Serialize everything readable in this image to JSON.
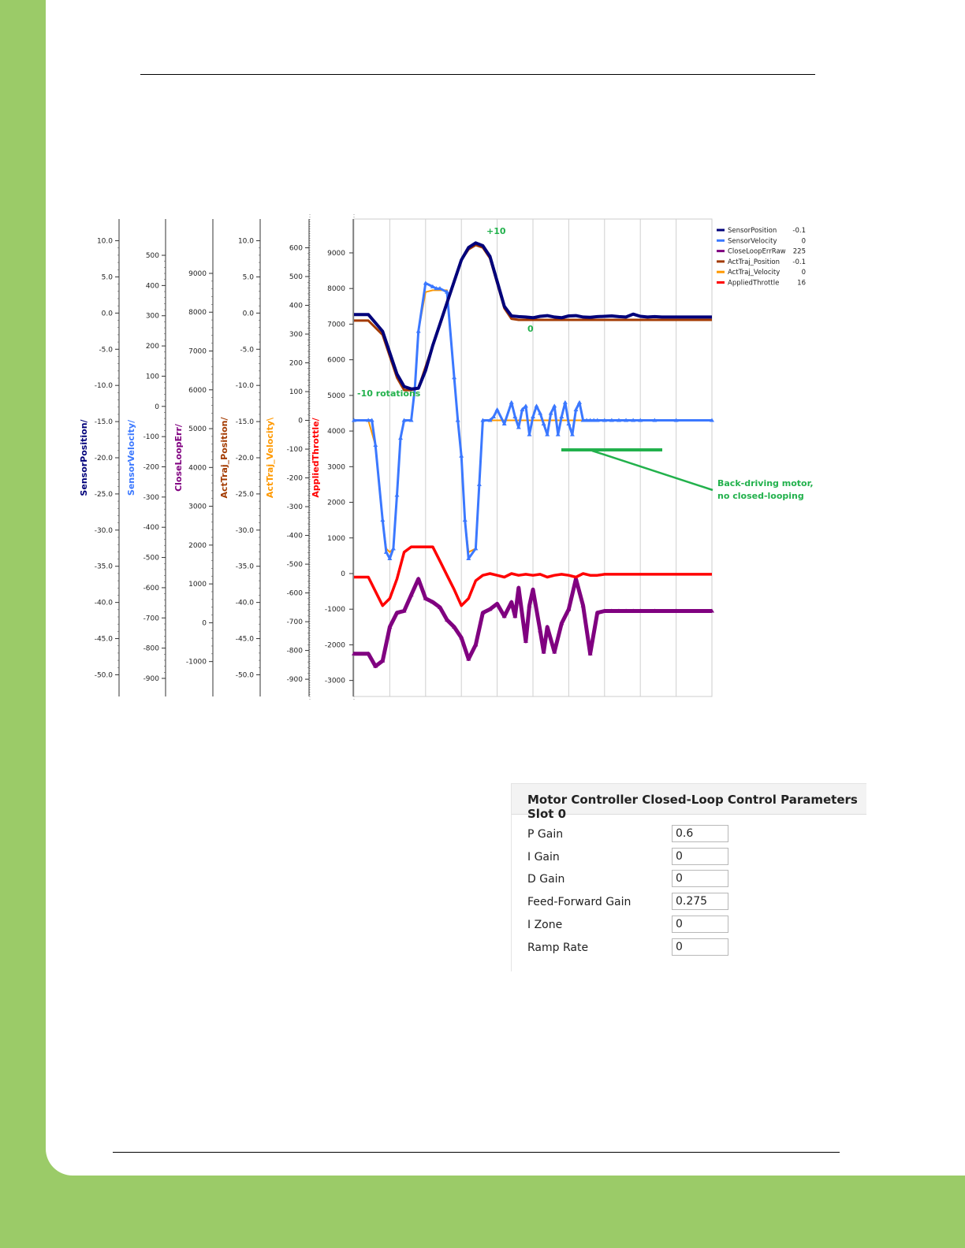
{
  "chart_data": {
    "type": "line",
    "axes": [
      {
        "name": "SensorPosition/",
        "color": "#00007a",
        "ticks": [
          10,
          5,
          0,
          -5,
          -10,
          -15,
          -20,
          -25,
          -30,
          -35,
          -40,
          -45,
          -50
        ],
        "tick_labels": [
          "10.0",
          "5.0",
          "0.0",
          "-5.0",
          "-10.0",
          "-15.0",
          "-20.0",
          "-25.0",
          "-30.0",
          "-35.0",
          "-40.0",
          "-45.0",
          "-50.0"
        ],
        "ylim": [
          -53,
          13
        ]
      },
      {
        "name": "SensorVelocity/",
        "color": "#3b78ff",
        "ticks": [
          500,
          400,
          300,
          200,
          100,
          0,
          -100,
          -200,
          -300,
          -400,
          -500,
          -600,
          -700,
          -800,
          -900
        ],
        "tick_labels": [
          "500",
          "400",
          "300",
          "200",
          "100",
          "0",
          "-100",
          "-200",
          "-300",
          "-400",
          "-500",
          "-600",
          "-700",
          "-800",
          "-900"
        ],
        "ylim": [
          -960,
          620
        ]
      },
      {
        "name": "CloseLoopErr/",
        "color": "#800080",
        "ticks": [
          9000,
          8000,
          7000,
          6000,
          5000,
          4000,
          3000,
          2000,
          1000,
          0,
          -1000
        ],
        "tick_labels": [
          "9000",
          "8000",
          "7000",
          "6000",
          "5000",
          "4000",
          "3000",
          "2000",
          "1000",
          "0",
          "-1000"
        ],
        "ylim": [
          -1900,
          10400
        ]
      },
      {
        "name": "ActTraj_Position/",
        "color": "#a33a00",
        "ticks": [
          10,
          5,
          0,
          -5,
          -10,
          -15,
          -20,
          -25,
          -30,
          -35,
          -40,
          -45,
          -50
        ],
        "tick_labels": [
          "10.0",
          "5.0",
          "0.0",
          "-5.0",
          "-10.0",
          "-15.0",
          "-20.0",
          "-25.0",
          "-30.0",
          "-35.0",
          "-40.0",
          "-45.0",
          "-50.0"
        ],
        "ylim": [
          -53,
          13
        ]
      },
      {
        "name": "ActTraj_Velocity\\",
        "color": "#ff9900",
        "ticks": [
          600,
          500,
          400,
          300,
          200,
          100,
          0,
          -100,
          -200,
          -300,
          -400,
          -500,
          -600,
          -700,
          -800,
          -900
        ],
        "tick_labels": [
          "600",
          "500",
          "400",
          "300",
          "200",
          "100",
          "0",
          "-100",
          "-200",
          "-300",
          "-400",
          "-500",
          "-600",
          "-700",
          "-800",
          "-900"
        ],
        "ylim": [
          -960,
          700
        ]
      },
      {
        "name": "AppliedThrottle/",
        "color": "#ff0000",
        "ticks": [
          9000,
          8000,
          7000,
          6000,
          5000,
          4000,
          3000,
          2000,
          1000,
          0,
          -1000,
          -2000,
          -3000
        ],
        "tick_labels": [
          "9000",
          "8000",
          "7000",
          "6000",
          "5000",
          "4000",
          "3000",
          "2000",
          "1000",
          "0",
          "-1000",
          "-2000",
          "-3000"
        ],
        "ylim": [
          -3450,
          9950
        ]
      }
    ],
    "plot_ylim": [
      -3450,
      9950
    ],
    "grid": true,
    "legend_position": "right",
    "series": [
      {
        "name": "SensorPosition",
        "value": "-0.1",
        "color": "#00007a",
        "x": [
          0,
          4,
          8,
          12,
          14,
          16,
          18,
          20,
          22,
          24,
          26,
          28,
          30,
          32,
          34,
          36,
          38,
          40,
          42,
          44,
          46,
          48,
          50,
          52,
          54,
          56,
          58,
          60,
          62,
          64,
          66,
          68,
          70,
          72,
          74,
          76,
          78,
          80,
          82,
          84,
          86,
          88,
          90,
          92,
          94,
          96,
          98,
          100
        ],
        "y": [
          7270,
          7270,
          6800,
          5600,
          5250,
          5180,
          5200,
          5700,
          6400,
          7000,
          7600,
          8200,
          8800,
          9150,
          9280,
          9200,
          8900,
          8200,
          7500,
          7230,
          7210,
          7200,
          7180,
          7220,
          7240,
          7200,
          7180,
          7230,
          7240,
          7200,
          7190,
          7210,
          7220,
          7230,
          7210,
          7200,
          7280,
          7220,
          7200,
          7210,
          7200,
          7200,
          7200,
          7200,
          7200,
          7200,
          7200,
          7200
        ]
      },
      {
        "name": "SensorVelocity",
        "value": "0",
        "color": "#3b78ff",
        "x": [
          0,
          4,
          5,
          6,
          8,
          9,
          10,
          11,
          12,
          13,
          14,
          16,
          17,
          18,
          20,
          22,
          23,
          24,
          26,
          28,
          29,
          30,
          31,
          32,
          34,
          35,
          36,
          38,
          39,
          40,
          42,
          44,
          45,
          46,
          47,
          48,
          49,
          50,
          51,
          52,
          53,
          54,
          55,
          56,
          57,
          58,
          59,
          60,
          61,
          62,
          63,
          64,
          65,
          66,
          67,
          68,
          70,
          72,
          74,
          76,
          78,
          80,
          84,
          90,
          100
        ],
        "y": [
          4300,
          4300,
          4300,
          3600,
          1500,
          600,
          420,
          700,
          2200,
          3800,
          4300,
          4300,
          5200,
          6800,
          8150,
          8050,
          8000,
          8000,
          7900,
          5500,
          4300,
          3300,
          1500,
          420,
          700,
          2500,
          4300,
          4300,
          4400,
          4600,
          4200,
          4800,
          4400,
          4100,
          4600,
          4700,
          3900,
          4400,
          4700,
          4500,
          4200,
          3900,
          4500,
          4700,
          3900,
          4400,
          4800,
          4200,
          3900,
          4600,
          4800,
          4300,
          4300,
          4300,
          4300,
          4300,
          4300,
          4300,
          4300,
          4300,
          4300,
          4300,
          4300,
          4300,
          4300
        ]
      },
      {
        "name": "CloseLoopErrRaw",
        "value": "225",
        "color": "#800080",
        "x": [
          0,
          4,
          6,
          8,
          10,
          12,
          14,
          16,
          18,
          20,
          22,
          24,
          26,
          28,
          30,
          32,
          34,
          36,
          38,
          40,
          42,
          44,
          45,
          46,
          48,
          49,
          50,
          52,
          53,
          54,
          56,
          58,
          60,
          62,
          64,
          66,
          68,
          70,
          72,
          74,
          76,
          78,
          80,
          84,
          90,
          100
        ],
        "y": [
          -2250,
          -2250,
          -2600,
          -2450,
          -1500,
          -1100,
          -1050,
          -600,
          -150,
          -700,
          -800,
          -950,
          -1300,
          -1500,
          -1800,
          -2400,
          -2000,
          -1100,
          -1000,
          -850,
          -1200,
          -800,
          -1200,
          -400,
          -1900,
          -900,
          -450,
          -1600,
          -2200,
          -1500,
          -2200,
          -1400,
          -1000,
          -150,
          -900,
          -2250,
          -1100,
          -1050,
          -1050,
          -1050,
          -1050,
          -1050,
          -1050,
          -1050,
          -1050,
          -1050
        ]
      },
      {
        "name": "ActTraj_Position",
        "value": "-0.1",
        "color": "#a33a00",
        "x": [
          0,
          4,
          8,
          12,
          14,
          16,
          18,
          20,
          22,
          24,
          26,
          28,
          30,
          32,
          34,
          36,
          38,
          40,
          42,
          44,
          46,
          100
        ],
        "y": [
          7100,
          7100,
          6700,
          5500,
          5150,
          5150,
          5200,
          5800,
          6400,
          7000,
          7600,
          8200,
          8800,
          9100,
          9220,
          9150,
          8850,
          8150,
          7450,
          7150,
          7120,
          7120
        ]
      },
      {
        "name": "ActTraj_Velocity",
        "value": "0",
        "color": "#ff9900",
        "x": [
          0,
          4,
          6,
          8,
          9,
          10,
          11,
          12,
          13,
          14,
          16,
          17,
          18,
          20,
          22,
          24,
          26,
          28,
          29,
          30,
          31,
          32,
          34,
          35,
          36,
          38,
          100
        ],
        "y": [
          4300,
          4300,
          3600,
          1500,
          700,
          600,
          700,
          2200,
          3800,
          4300,
          4300,
          5200,
          6800,
          7900,
          7950,
          7950,
          7950,
          5500,
          4300,
          3300,
          1500,
          600,
          700,
          2500,
          4300,
          4300,
          4300
        ]
      },
      {
        "name": "AppliedThrottle",
        "value": "16",
        "color": "#ff0000",
        "x": [
          0,
          4,
          8,
          10,
          12,
          14,
          16,
          18,
          20,
          22,
          24,
          26,
          28,
          30,
          32,
          34,
          36,
          38,
          40,
          42,
          44,
          46,
          48,
          50,
          52,
          54,
          56,
          58,
          60,
          62,
          64,
          66,
          68,
          70,
          72,
          74,
          76,
          78,
          80,
          84,
          90,
          100
        ],
        "y": [
          -100,
          -100,
          -900,
          -700,
          -150,
          600,
          750,
          750,
          750,
          750,
          350,
          -50,
          -450,
          -900,
          -700,
          -200,
          -50,
          0,
          -50,
          -100,
          0,
          -50,
          -20,
          -50,
          -20,
          -100,
          -50,
          -20,
          -50,
          -100,
          0,
          -50,
          -50,
          -20,
          -20,
          -20,
          -20,
          -20,
          -20,
          -20,
          -20,
          -20
        ]
      }
    ],
    "annotations": [
      "+10",
      "0",
      "-10 rotations",
      "Back-driving motor,",
      "no closed-looping"
    ]
  },
  "params_panel": {
    "title": "Motor Controller Closed-Loop Control Parameters Slot 0",
    "rows": [
      {
        "label": "P Gain",
        "value": "0.6"
      },
      {
        "label": "I Gain",
        "value": "0"
      },
      {
        "label": "D Gain",
        "value": "0"
      },
      {
        "label": "Feed-Forward Gain",
        "value": "0.275"
      },
      {
        "label": "I Zone",
        "value": "0"
      },
      {
        "label": "Ramp Rate",
        "value": "0"
      }
    ]
  }
}
